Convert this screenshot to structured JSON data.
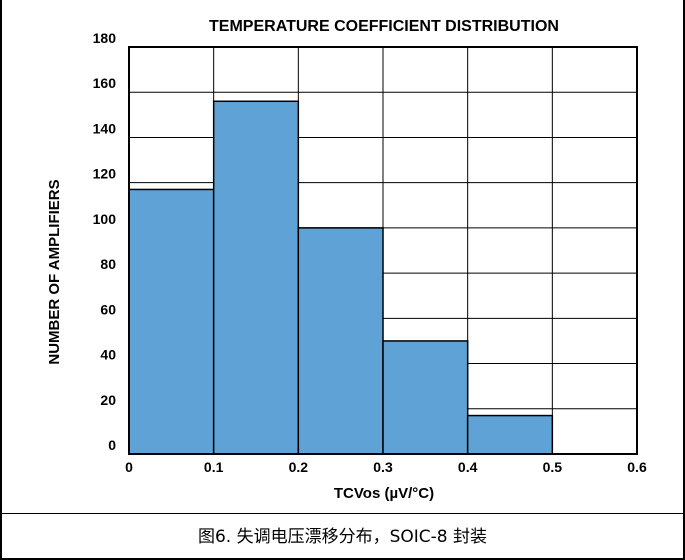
{
  "caption": "图6. 失调电压漂移分布，SOIC-8 封装",
  "colors": {
    "bar": "#5fa3d6",
    "line": "#000000"
  },
  "chart_data": {
    "type": "bar",
    "title": "TEMPERATURE COEFFICIENT DISTRIBUTION",
    "xlabel": "TCVos (µV/°C)",
    "ylabel": "NUMBER OF AMPLIFIERS",
    "xlim": [
      0,
      0.6
    ],
    "ylim": [
      0,
      180
    ],
    "xticks": [
      "0",
      "0.1",
      "0.2",
      "0.3",
      "0.4",
      "0.5",
      "0.6"
    ],
    "yticks": [
      "0",
      "20",
      "40",
      "60",
      "80",
      "100",
      "120",
      "140",
      "160",
      "180"
    ],
    "bins": [
      {
        "x0": 0.0,
        "x1": 0.1,
        "value": 117
      },
      {
        "x0": 0.1,
        "x1": 0.2,
        "value": 156
      },
      {
        "x0": 0.2,
        "x1": 0.3,
        "value": 100
      },
      {
        "x0": 0.3,
        "x1": 0.4,
        "value": 50
      },
      {
        "x0": 0.4,
        "x1": 0.5,
        "value": 17
      },
      {
        "x0": 0.5,
        "x1": 0.6,
        "value": 0
      }
    ],
    "grid": true
  }
}
